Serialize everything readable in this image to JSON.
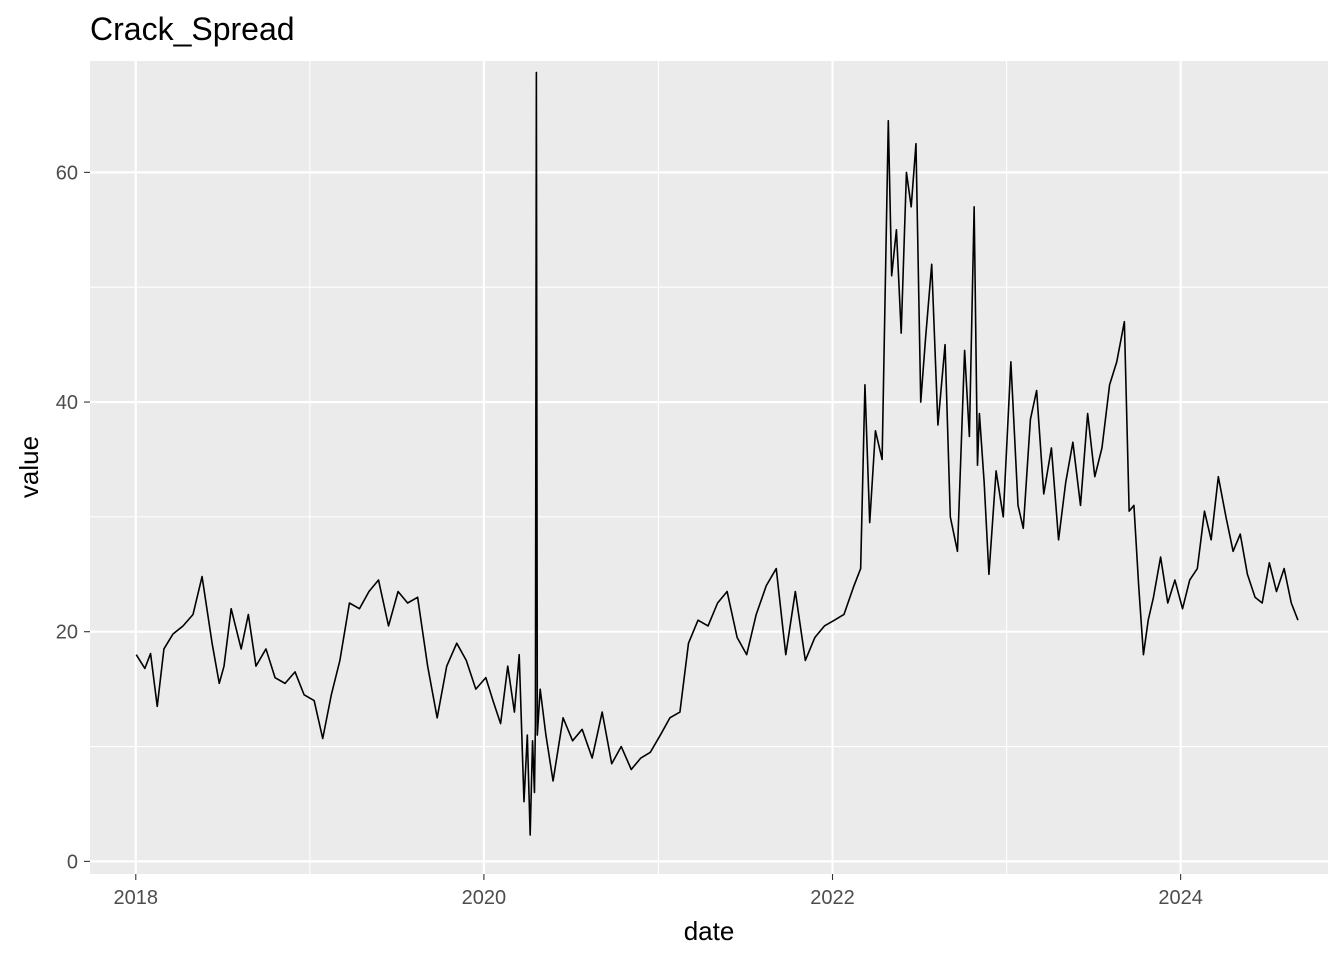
{
  "chart_data": {
    "type": "line",
    "title": "Crack_Spread",
    "xlabel": "date",
    "ylabel": "value",
    "xlim": [
      "2017-09-27",
      "2024-11-05"
    ],
    "ylim": [
      -1.1,
      69.7
    ],
    "x_ticks": [
      "2018",
      "2020",
      "2022",
      "2024"
    ],
    "y_ticks": [
      0,
      20,
      40,
      60
    ],
    "grid": true,
    "legend": "none",
    "colors": {
      "panel": "#ebebeb",
      "grid": "#ffffff",
      "line": "#000000",
      "tick_text": "#4d4d4d"
    },
    "series": [
      {
        "x": [
          "2018-01-02",
          "2018-01-20",
          "2018-02-01",
          "2018-02-15",
          "2018-03-01",
          "2018-03-20",
          "2018-04-10",
          "2018-05-01",
          "2018-05-20",
          "2018-06-10",
          "2018-06-25",
          "2018-07-05",
          "2018-07-20",
          "2018-08-10",
          "2018-08-25",
          "2018-09-10",
          "2018-10-01",
          "2018-10-20",
          "2018-11-10",
          "2018-12-01",
          "2018-12-20",
          "2019-01-10",
          "2019-01-28",
          "2019-02-15",
          "2019-03-05",
          "2019-03-25",
          "2019-04-15",
          "2019-05-05",
          "2019-05-25",
          "2019-06-15",
          "2019-07-05",
          "2019-07-25",
          "2019-08-15",
          "2019-09-05",
          "2019-09-25",
          "2019-10-15",
          "2019-11-05",
          "2019-11-25",
          "2019-12-15",
          "2020-01-05",
          "2020-01-20",
          "2020-02-05",
          "2020-02-20",
          "2020-03-05",
          "2020-03-15",
          "2020-03-25",
          "2020-04-01",
          "2020-04-07",
          "2020-04-12",
          "2020-04-16",
          "2020-04-18",
          "2020-04-20",
          "2020-04-22",
          "2020-04-28",
          "2020-05-10",
          "2020-05-25",
          "2020-06-15",
          "2020-07-05",
          "2020-07-25",
          "2020-08-15",
          "2020-09-05",
          "2020-09-25",
          "2020-10-15",
          "2020-11-05",
          "2020-11-25",
          "2020-12-15",
          "2021-01-05",
          "2021-01-25",
          "2021-02-15",
          "2021-03-05",
          "2021-03-25",
          "2021-04-15",
          "2021-05-05",
          "2021-05-25",
          "2021-06-15",
          "2021-07-05",
          "2021-07-25",
          "2021-08-15",
          "2021-09-05",
          "2021-09-25",
          "2021-10-15",
          "2021-11-05",
          "2021-11-25",
          "2021-12-15",
          "2022-01-05",
          "2022-01-25",
          "2022-02-15",
          "2022-03-01",
          "2022-03-10",
          "2022-03-20",
          "2022-04-01",
          "2022-04-15",
          "2022-04-28",
          "2022-05-05",
          "2022-05-15",
          "2022-05-25",
          "2022-06-05",
          "2022-06-15",
          "2022-06-25",
          "2022-07-05",
          "2022-07-15",
          "2022-07-28",
          "2022-08-10",
          "2022-08-25",
          "2022-09-05",
          "2022-09-20",
          "2022-10-05",
          "2022-10-15",
          "2022-10-25",
          "2022-11-01",
          "2022-11-05",
          "2022-11-15",
          "2022-11-25",
          "2022-12-10",
          "2022-12-25",
          "2023-01-10",
          "2023-01-25",
          "2023-02-05",
          "2023-02-20",
          "2023-03-05",
          "2023-03-20",
          "2023-04-05",
          "2023-04-20",
          "2023-05-05",
          "2023-05-20",
          "2023-06-05",
          "2023-06-20",
          "2023-07-05",
          "2023-07-20",
          "2023-08-05",
          "2023-08-20",
          "2023-09-05",
          "2023-09-15",
          "2023-09-25",
          "2023-10-05",
          "2023-10-15",
          "2023-10-25",
          "2023-11-05",
          "2023-11-20",
          "2023-12-05",
          "2023-12-20",
          "2024-01-05",
          "2024-01-20",
          "2024-02-05",
          "2024-02-20",
          "2024-03-05",
          "2024-03-20",
          "2024-04-05",
          "2024-04-20",
          "2024-05-05",
          "2024-05-20",
          "2024-06-05",
          "2024-06-20",
          "2024-07-05",
          "2024-07-20",
          "2024-08-05",
          "2024-08-20",
          "2024-09-03"
        ],
        "y": [
          18.0,
          16.8,
          18.1,
          13.5,
          18.5,
          19.8,
          20.5,
          21.5,
          24.8,
          19.0,
          15.5,
          17.0,
          22.0,
          18.5,
          21.5,
          17.0,
          18.5,
          16.0,
          15.5,
          16.5,
          14.5,
          14.0,
          10.7,
          14.5,
          17.5,
          22.5,
          22.0,
          23.5,
          24.5,
          20.5,
          23.5,
          22.5,
          23.0,
          17.0,
          12.5,
          17.0,
          19.0,
          17.5,
          15.0,
          16.0,
          14.0,
          12.0,
          17.0,
          13.0,
          18.0,
          5.2,
          11.0,
          2.3,
          10.5,
          6.0,
          12.0,
          68.7,
          11.0,
          15.0,
          11.0,
          7.0,
          12.5,
          10.5,
          11.5,
          9.0,
          13.0,
          8.5,
          10.0,
          8.0,
          9.0,
          9.5,
          11.0,
          12.5,
          13.0,
          19.0,
          21.0,
          20.5,
          22.5,
          23.5,
          19.5,
          18.0,
          21.5,
          24.0,
          25.5,
          18.0,
          23.5,
          17.5,
          19.5,
          20.5,
          21.0,
          21.5,
          24.0,
          25.5,
          41.5,
          29.5,
          37.5,
          35.0,
          64.5,
          51.0,
          55.0,
          46.0,
          60.0,
          57.0,
          62.5,
          40.0,
          45.5,
          52.0,
          38.0,
          45.0,
          30.0,
          27.0,
          44.5,
          37.0,
          57.0,
          34.5,
          39.0,
          33.0,
          25.0,
          34.0,
          30.0,
          43.5,
          31.0,
          29.0,
          38.5,
          41.0,
          32.0,
          36.0,
          28.0,
          33.0,
          36.5,
          31.0,
          39.0,
          33.5,
          36.0,
          41.5,
          43.5,
          47.0,
          30.5,
          31.0,
          24.0,
          18.0,
          21.0,
          23.0,
          26.5,
          22.5,
          24.5,
          22.0,
          24.5,
          25.5,
          30.5,
          28.0,
          33.5,
          30.0,
          27.0,
          28.5,
          25.0,
          23.0,
          22.5,
          26.0,
          23.5,
          25.5,
          22.5,
          21.0
        ]
      }
    ]
  }
}
